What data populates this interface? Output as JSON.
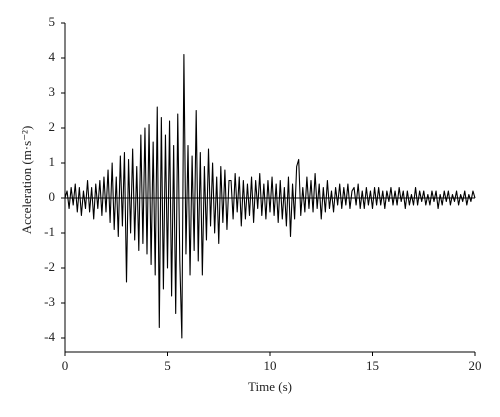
{
  "chart_data": {
    "type": "line",
    "xlabel": "Time (s)",
    "ylabel": "Acceleration (m·s⁻²)",
    "x": [
      0,
      0.1,
      0.2,
      0.3,
      0.4,
      0.5,
      0.6,
      0.7,
      0.8,
      0.9,
      1,
      1.1,
      1.2,
      1.3,
      1.4,
      1.5,
      1.6,
      1.7,
      1.8,
      1.9,
      2,
      2.1,
      2.2,
      2.3,
      2.4,
      2.5,
      2.6,
      2.7,
      2.8,
      2.9,
      3,
      3.1,
      3.2,
      3.3,
      3.4,
      3.5,
      3.6,
      3.7,
      3.8,
      3.9,
      4,
      4.1,
      4.2,
      4.3,
      4.4,
      4.5,
      4.6,
      4.7,
      4.8,
      4.9,
      5,
      5.1,
      5.2,
      5.3,
      5.4,
      5.5,
      5.6,
      5.7,
      5.8,
      5.9,
      6,
      6.1,
      6.2,
      6.3,
      6.4,
      6.5,
      6.6,
      6.7,
      6.8,
      6.9,
      7,
      7.1,
      7.2,
      7.3,
      7.4,
      7.5,
      7.6,
      7.7,
      7.8,
      7.9,
      8,
      8.1,
      8.2,
      8.3,
      8.4,
      8.5,
      8.6,
      8.7,
      8.8,
      8.9,
      9,
      9.1,
      9.2,
      9.3,
      9.4,
      9.5,
      9.6,
      9.7,
      9.8,
      9.9,
      10,
      10.1,
      10.2,
      10.3,
      10.4,
      10.5,
      10.6,
      10.7,
      10.8,
      10.9,
      11,
      11.1,
      11.2,
      11.3,
      11.4,
      11.5,
      11.6,
      11.7,
      11.8,
      11.9,
      12,
      12.1,
      12.2,
      12.3,
      12.4,
      12.5,
      12.6,
      12.7,
      12.8,
      12.9,
      13,
      13.1,
      13.2,
      13.3,
      13.4,
      13.5,
      13.6,
      13.7,
      13.8,
      13.9,
      14,
      14.1,
      14.2,
      14.3,
      14.4,
      14.5,
      14.6,
      14.7,
      14.8,
      14.9,
      15,
      15.1,
      15.2,
      15.3,
      15.4,
      15.5,
      15.6,
      15.7,
      15.8,
      15.9,
      16,
      16.1,
      16.2,
      16.3,
      16.4,
      16.5,
      16.6,
      16.7,
      16.8,
      16.9,
      17,
      17.1,
      17.2,
      17.3,
      17.4,
      17.5,
      17.6,
      17.7,
      17.8,
      17.9,
      18,
      18.1,
      18.2,
      18.3,
      18.4,
      18.5,
      18.6,
      18.7,
      18.8,
      18.9,
      19,
      19.1,
      19.2,
      19.3,
      19.4,
      19.5,
      19.6,
      19.7,
      19.8,
      19.9,
      20
    ],
    "series": [
      {
        "name": "Acceleration",
        "color": "#000000",
        "values": [
          0,
          0.2,
          -0.3,
          0.3,
          -0.2,
          0.4,
          -0.4,
          0.3,
          -0.5,
          0.2,
          -0.3,
          0.5,
          -0.4,
          0.3,
          -0.6,
          0.4,
          -0.3,
          0.5,
          -0.5,
          0.6,
          -0.4,
          0.8,
          -0.7,
          1.0,
          -0.9,
          0.6,
          -1.1,
          1.2,
          -0.8,
          1.3,
          -2.4,
          1.1,
          -1.0,
          1.4,
          -1.2,
          0.9,
          -1.5,
          1.8,
          -1.3,
          2.0,
          -1.6,
          2.1,
          -1.9,
          1.6,
          -2.2,
          2.6,
          -3.7,
          2.3,
          -2.6,
          1.8,
          -2.0,
          2.2,
          -2.8,
          1.5,
          -3.3,
          2.4,
          -1.8,
          -4.0,
          4.1,
          -1.6,
          1.5,
          -2.2,
          1.2,
          -1.5,
          2.5,
          -1.8,
          1.3,
          -2.2,
          0.9,
          -1.2,
          1.4,
          -0.8,
          1.0,
          -1.0,
          0.6,
          -1.3,
          0.9,
          -0.7,
          0.8,
          -0.9,
          0.5,
          0.5,
          -0.6,
          0.7,
          -0.4,
          0.6,
          -0.8,
          0.5,
          -0.6,
          0.4,
          -0.5,
          0.6,
          -0.7,
          0.5,
          -0.3,
          0.7,
          -0.5,
          0.4,
          -0.6,
          0.5,
          -0.4,
          0.6,
          -0.5,
          0.4,
          -0.7,
          0.5,
          -0.6,
          0.3,
          -0.8,
          0.6,
          -1.1,
          0.4,
          -0.6,
          0.9,
          1.1,
          -0.5,
          0.3,
          -0.4,
          0.6,
          -0.3,
          0.5,
          -0.4,
          0.7,
          -0.3,
          0.4,
          -0.6,
          0.3,
          -0.4,
          0.5,
          -0.3,
          0.2,
          -0.4,
          0.3,
          -0.2,
          0.4,
          -0.3,
          0.3,
          -0.2,
          0.4,
          -0.3,
          0.2,
          0.3,
          -0.2,
          0.4,
          -0.3,
          0.2,
          -0.3,
          0.3,
          -0.2,
          0.2,
          -0.3,
          0.3,
          -0.2,
          0.3,
          -0.2,
          0.2,
          -0.3,
          0.2,
          -0.1,
          0.3,
          -0.2,
          0.2,
          -0.2,
          0.3,
          -0.1,
          0.2,
          -0.3,
          0.2,
          -0.2,
          0.1,
          -0.2,
          0.3,
          -0.2,
          0.2,
          -0.1,
          0.2,
          -0.2,
          0.1,
          -0.2,
          0.2,
          -0.1,
          0.2,
          -0.3,
          0.1,
          -0.2,
          0.2,
          -0.1,
          0.2,
          -0.2,
          0.1,
          -0.1,
          0.2,
          -0.2,
          0.1,
          -0.1,
          0.2,
          -0.2,
          0.1,
          -0.1,
          0.2,
          0
        ]
      }
    ],
    "xlim": [
      0,
      20
    ],
    "xticks": [
      0,
      5,
      10,
      15,
      20
    ],
    "ylim": [
      -4,
      5
    ],
    "yticks": [
      -4,
      -3,
      -2,
      -1,
      0,
      1,
      2,
      3,
      4,
      5
    ]
  }
}
